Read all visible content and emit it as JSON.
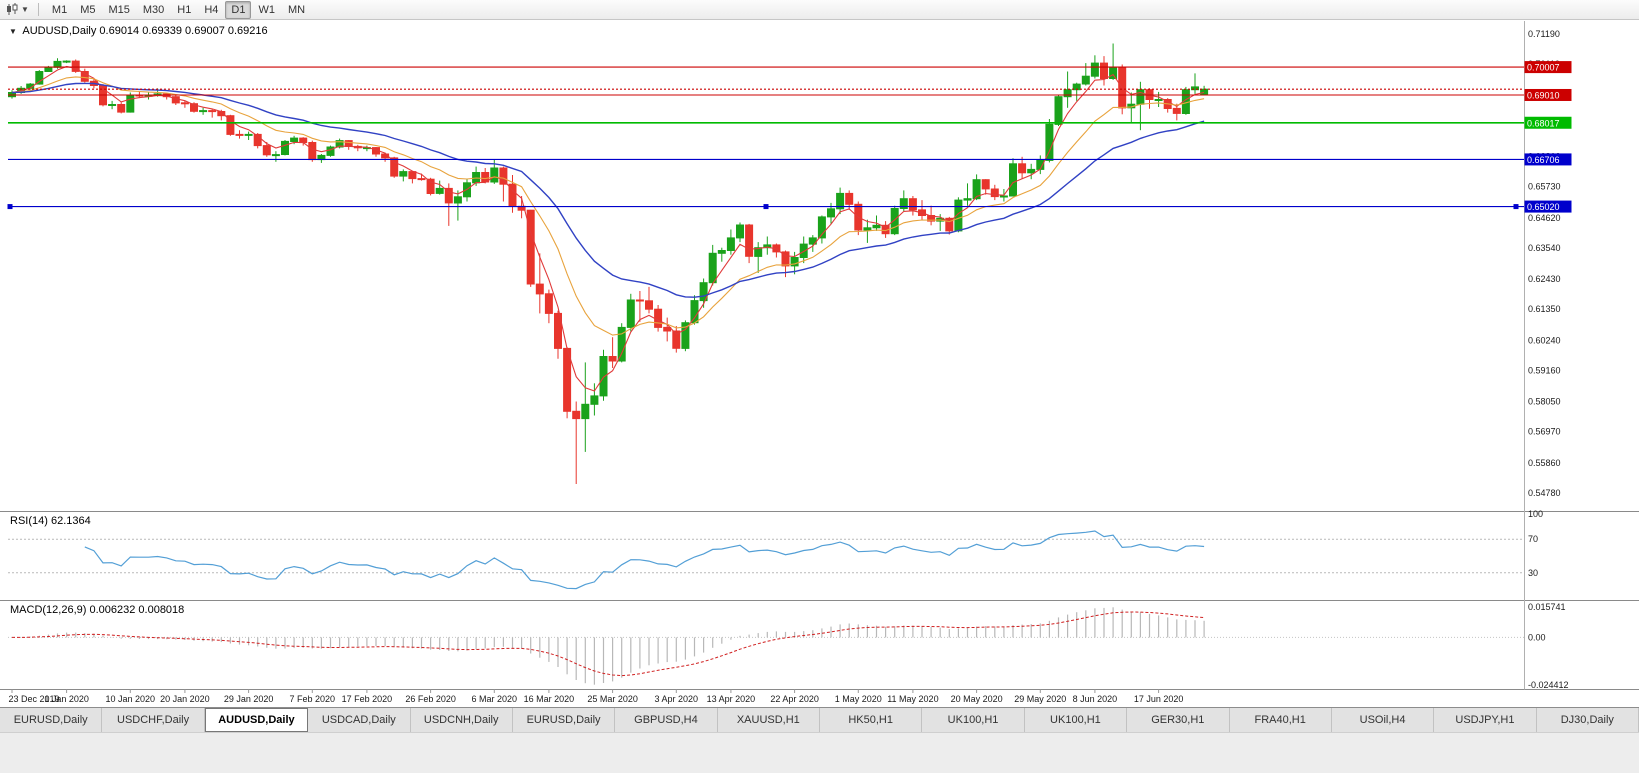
{
  "toolbar": {
    "timeframes": [
      "M1",
      "M5",
      "M15",
      "M30",
      "H1",
      "H4",
      "D1",
      "W1",
      "MN"
    ],
    "active_timeframe": "D1"
  },
  "chart": {
    "title": "AUDUSD,Daily",
    "ohlc": "0.69014 0.69339 0.69007 0.69216"
  },
  "chart_data": {
    "type": "candlestick",
    "symbol": "AUDUSD",
    "period": "Daily",
    "current_bar": {
      "open": 0.69014,
      "high": 0.69339,
      "low": 0.69007,
      "close": 0.69216
    },
    "price_top": 0.71655,
    "price_bottom": 0.54136,
    "y_axis_ticks": [
      0.7119,
      0.7011,
      0.69,
      0.6792,
      0.6681,
      0.6573,
      0.6462,
      0.6354,
      0.6243,
      0.6135,
      0.6024,
      0.5916,
      0.5805,
      0.5697,
      0.5586,
      0.5478
    ],
    "x_axis_labels": [
      {
        "i": 0,
        "text": "23 Dec 2019"
      },
      {
        "i": 6,
        "text": "1 Jan 2020"
      },
      {
        "i": 13,
        "text": "10 Jan 2020"
      },
      {
        "i": 19,
        "text": "20 Jan 2020"
      },
      {
        "i": 26,
        "text": "29 Jan 2020"
      },
      {
        "i": 33,
        "text": "7 Feb 2020"
      },
      {
        "i": 39,
        "text": "17 Feb 2020"
      },
      {
        "i": 46,
        "text": "26 Feb 2020"
      },
      {
        "i": 53,
        "text": "6 Mar 2020"
      },
      {
        "i": 59,
        "text": "16 Mar 2020"
      },
      {
        "i": 66,
        "text": "25 Mar 2020"
      },
      {
        "i": 73,
        "text": "3 Apr 2020"
      },
      {
        "i": 79,
        "text": "13 Apr 2020"
      },
      {
        "i": 86,
        "text": "22 Apr 2020"
      },
      {
        "i": 93,
        "text": "1 May 2020"
      },
      {
        "i": 99,
        "text": "11 May 2020"
      },
      {
        "i": 106,
        "text": "20 May 2020"
      },
      {
        "i": 113,
        "text": "29 May 2020"
      },
      {
        "i": 119,
        "text": "8 Jun 2020"
      },
      {
        "i": 126,
        "text": "17 Jun 2020"
      }
    ],
    "colors": {
      "up": "#1aa21b",
      "down": "#e8352c",
      "ma_fast": "#e03a3a",
      "ma_mid": "#e8a33d",
      "ma_slow": "#3142c4",
      "rsi": "#539fd6",
      "macd_hist": "#b8b8b8",
      "macd_signal": "#d02020",
      "badge_text": "#ffffff"
    },
    "horizontal_lines": [
      {
        "price": 0.70007,
        "label": "0.70007",
        "color": "#cc0000",
        "style": "solid",
        "selected": false
      },
      {
        "price": 0.69216,
        "label": "",
        "color": "#cc0000",
        "style": "dotted",
        "selected": false
      },
      {
        "price": 0.6901,
        "label": "0.69010",
        "color": "#cc0000",
        "style": "solid",
        "selected": false
      },
      {
        "price": 0.68017,
        "label": "0.68017",
        "color": "#00bb00",
        "style": "solid",
        "selected": false
      },
      {
        "price": 0.66706,
        "label": "0.66706",
        "color": "#0000cc",
        "style": "solid",
        "selected": false
      },
      {
        "price": 0.6502,
        "label": "0.65020",
        "color": "#0000cc",
        "style": "solid",
        "selected": true
      }
    ],
    "moving_averages": [
      {
        "period": 4,
        "type": "ema",
        "color_key": "ma_fast"
      },
      {
        "period": 12,
        "type": "ema",
        "color_key": "ma_mid"
      },
      {
        "period": 26,
        "type": "ema",
        "color_key": "ma_slow"
      }
    ],
    "candles": [
      [
        0.6895,
        0.6918,
        0.6888,
        0.691
      ],
      [
        0.691,
        0.6933,
        0.6905,
        0.6925
      ],
      [
        0.6925,
        0.6944,
        0.692,
        0.694
      ],
      [
        0.694,
        0.699,
        0.6938,
        0.6985
      ],
      [
        0.6985,
        0.7005,
        0.6983,
        0.7
      ],
      [
        0.7,
        0.7032,
        0.6995,
        0.7021
      ],
      [
        0.7021,
        0.7025,
        0.7015,
        0.7022
      ],
      [
        0.7022,
        0.7028,
        0.698,
        0.6985
      ],
      [
        0.6985,
        0.6995,
        0.6945,
        0.695
      ],
      [
        0.695,
        0.696,
        0.6925,
        0.6935
      ],
      [
        0.6935,
        0.694,
        0.686,
        0.6866
      ],
      [
        0.6866,
        0.688,
        0.685,
        0.6867
      ],
      [
        0.6867,
        0.6875,
        0.6835,
        0.684
      ],
      [
        0.684,
        0.691,
        0.6838,
        0.6901
      ],
      [
        0.6901,
        0.6912,
        0.689,
        0.69
      ],
      [
        0.69,
        0.6911,
        0.6885,
        0.69
      ],
      [
        0.69,
        0.6925,
        0.6895,
        0.6905
      ],
      [
        0.6905,
        0.691,
        0.6885,
        0.6895
      ],
      [
        0.6895,
        0.69,
        0.6865,
        0.6873
      ],
      [
        0.6873,
        0.688,
        0.6855,
        0.687
      ],
      [
        0.687,
        0.6875,
        0.6838,
        0.6843
      ],
      [
        0.6843,
        0.6855,
        0.683,
        0.6845
      ],
      [
        0.6845,
        0.685,
        0.682,
        0.6842
      ],
      [
        0.6842,
        0.6848,
        0.681,
        0.6827
      ],
      [
        0.6827,
        0.683,
        0.6755,
        0.676
      ],
      [
        0.676,
        0.6775,
        0.6745,
        0.6757
      ],
      [
        0.6757,
        0.677,
        0.674,
        0.676
      ],
      [
        0.676,
        0.6765,
        0.671,
        0.672
      ],
      [
        0.672,
        0.6733,
        0.668,
        0.6687
      ],
      [
        0.6687,
        0.67,
        0.6662,
        0.6688
      ],
      [
        0.6688,
        0.674,
        0.6685,
        0.6735
      ],
      [
        0.6735,
        0.6755,
        0.6725,
        0.6747
      ],
      [
        0.6747,
        0.675,
        0.672,
        0.6731
      ],
      [
        0.6731,
        0.6738,
        0.6662,
        0.667
      ],
      [
        0.667,
        0.669,
        0.6658,
        0.6685
      ],
      [
        0.6685,
        0.672,
        0.668,
        0.6715
      ],
      [
        0.6715,
        0.6745,
        0.671,
        0.6738
      ],
      [
        0.6738,
        0.674,
        0.6705,
        0.6717
      ],
      [
        0.6717,
        0.6723,
        0.67,
        0.6712
      ],
      [
        0.6712,
        0.672,
        0.67,
        0.6713
      ],
      [
        0.6713,
        0.6715,
        0.668,
        0.669
      ],
      [
        0.669,
        0.6695,
        0.6662,
        0.6676
      ],
      [
        0.6676,
        0.668,
        0.6605,
        0.6611
      ],
      [
        0.6611,
        0.6635,
        0.6592,
        0.6627
      ],
      [
        0.6627,
        0.663,
        0.6585,
        0.6602
      ],
      [
        0.6602,
        0.662,
        0.6595,
        0.66
      ],
      [
        0.66,
        0.6605,
        0.6542,
        0.6549
      ],
      [
        0.6549,
        0.6595,
        0.6545,
        0.6567
      ],
      [
        0.6567,
        0.6585,
        0.6433,
        0.6515
      ],
      [
        0.6515,
        0.656,
        0.6452,
        0.6537
      ],
      [
        0.6537,
        0.66,
        0.652,
        0.6587
      ],
      [
        0.6587,
        0.6645,
        0.6576,
        0.6624
      ],
      [
        0.6624,
        0.664,
        0.6585,
        0.659
      ],
      [
        0.659,
        0.667,
        0.6583,
        0.664
      ],
      [
        0.664,
        0.6645,
        0.652,
        0.6582
      ],
      [
        0.6582,
        0.6615,
        0.648,
        0.6503
      ],
      [
        0.6503,
        0.654,
        0.646,
        0.6489
      ],
      [
        0.6489,
        0.649,
        0.6215,
        0.6225
      ],
      [
        0.6225,
        0.6335,
        0.612,
        0.619
      ],
      [
        0.619,
        0.6205,
        0.6085,
        0.612
      ],
      [
        0.612,
        0.613,
        0.5958,
        0.5995
      ],
      [
        0.5995,
        0.6,
        0.5745,
        0.577
      ],
      [
        0.577,
        0.5805,
        0.551,
        0.5744
      ],
      [
        0.5744,
        0.5945,
        0.5625,
        0.5795
      ],
      [
        0.5795,
        0.587,
        0.5755,
        0.5825
      ],
      [
        0.5825,
        0.599,
        0.5808,
        0.5966
      ],
      [
        0.5966,
        0.6035,
        0.5925,
        0.595
      ],
      [
        0.595,
        0.6085,
        0.5945,
        0.607
      ],
      [
        0.607,
        0.619,
        0.6055,
        0.6168
      ],
      [
        0.6168,
        0.62,
        0.609,
        0.6165
      ],
      [
        0.6165,
        0.6215,
        0.612,
        0.6135
      ],
      [
        0.6135,
        0.615,
        0.6055,
        0.607
      ],
      [
        0.607,
        0.6105,
        0.602,
        0.6057
      ],
      [
        0.6057,
        0.6075,
        0.598,
        0.5995
      ],
      [
        0.5995,
        0.6095,
        0.5985,
        0.6087
      ],
      [
        0.6087,
        0.6185,
        0.608,
        0.6166
      ],
      [
        0.6166,
        0.6245,
        0.614,
        0.623
      ],
      [
        0.623,
        0.6365,
        0.622,
        0.6335
      ],
      [
        0.6335,
        0.6355,
        0.6305,
        0.6345
      ],
      [
        0.6345,
        0.642,
        0.633,
        0.639
      ],
      [
        0.639,
        0.6445,
        0.6375,
        0.6436
      ],
      [
        0.6436,
        0.644,
        0.63,
        0.6324
      ],
      [
        0.6324,
        0.6375,
        0.6265,
        0.6355
      ],
      [
        0.6355,
        0.6395,
        0.633,
        0.6365
      ],
      [
        0.6365,
        0.637,
        0.632,
        0.634
      ],
      [
        0.634,
        0.6345,
        0.625,
        0.629
      ],
      [
        0.629,
        0.634,
        0.626,
        0.632
      ],
      [
        0.632,
        0.6395,
        0.63,
        0.6368
      ],
      [
        0.6368,
        0.64,
        0.634,
        0.639
      ],
      [
        0.639,
        0.647,
        0.637,
        0.6465
      ],
      [
        0.6465,
        0.6515,
        0.644,
        0.6494
      ],
      [
        0.6494,
        0.657,
        0.6475,
        0.6549
      ],
      [
        0.6549,
        0.656,
        0.649,
        0.651
      ],
      [
        0.651,
        0.652,
        0.64,
        0.6418
      ],
      [
        0.6418,
        0.6455,
        0.6372,
        0.6426
      ],
      [
        0.6426,
        0.647,
        0.6415,
        0.6435
      ],
      [
        0.6435,
        0.645,
        0.639,
        0.6405
      ],
      [
        0.6405,
        0.6505,
        0.64,
        0.6495
      ],
      [
        0.6495,
        0.656,
        0.6485,
        0.653
      ],
      [
        0.653,
        0.654,
        0.647,
        0.649
      ],
      [
        0.649,
        0.6525,
        0.6455,
        0.647
      ],
      [
        0.647,
        0.6505,
        0.6435,
        0.645
      ],
      [
        0.645,
        0.6475,
        0.6415,
        0.646
      ],
      [
        0.646,
        0.6465,
        0.6402,
        0.6415
      ],
      [
        0.6415,
        0.6535,
        0.641,
        0.6525
      ],
      [
        0.6525,
        0.6585,
        0.6505,
        0.653
      ],
      [
        0.653,
        0.6617,
        0.6525,
        0.6598
      ],
      [
        0.6598,
        0.66,
        0.6545,
        0.6565
      ],
      [
        0.6565,
        0.658,
        0.6525,
        0.6538
      ],
      [
        0.6538,
        0.6565,
        0.652,
        0.654
      ],
      [
        0.654,
        0.6675,
        0.6538,
        0.6655
      ],
      [
        0.6655,
        0.668,
        0.6602,
        0.6623
      ],
      [
        0.6623,
        0.6655,
        0.66,
        0.6635
      ],
      [
        0.6635,
        0.6685,
        0.6618,
        0.6667
      ],
      [
        0.6667,
        0.6815,
        0.666,
        0.6796
      ],
      [
        0.6796,
        0.69,
        0.679,
        0.6895
      ],
      [
        0.6895,
        0.6985,
        0.6855,
        0.692
      ],
      [
        0.692,
        0.6945,
        0.688,
        0.694
      ],
      [
        0.694,
        0.7015,
        0.6935,
        0.6968
      ],
      [
        0.6968,
        0.7043,
        0.696,
        0.7015
      ],
      [
        0.7015,
        0.704,
        0.6935,
        0.696
      ],
      [
        0.696,
        0.7085,
        0.6955,
        0.7
      ],
      [
        0.7,
        0.701,
        0.6832,
        0.6855
      ],
      [
        0.6855,
        0.691,
        0.68,
        0.6868
      ],
      [
        0.6868,
        0.6948,
        0.6775,
        0.692
      ],
      [
        0.692,
        0.6925,
        0.6852,
        0.6885
      ],
      [
        0.6885,
        0.6912,
        0.6858,
        0.6885
      ],
      [
        0.6885,
        0.689,
        0.6838,
        0.6853
      ],
      [
        0.6853,
        0.687,
        0.681,
        0.6835
      ],
      [
        0.6835,
        0.693,
        0.683,
        0.692
      ],
      [
        0.692,
        0.6978,
        0.6905,
        0.693
      ],
      [
        0.69014,
        0.69339,
        0.69007,
        0.69216
      ]
    ],
    "rsi": {
      "label": "RSI(14) 62.1364",
      "period": 14,
      "value": 62.1364,
      "levels": [
        100,
        70,
        30
      ]
    },
    "macd": {
      "label": "MACD(12,26,9) 0.006232 0.008018",
      "values": [
        0.006232,
        0.008018
      ],
      "axis_labels": [
        "0.015741",
        "0.00",
        "-0.024412"
      ]
    }
  },
  "tabs": {
    "items": [
      "EURUSD,Daily",
      "USDCHF,Daily",
      "AUDUSD,Daily",
      "USDCAD,Daily",
      "USDCNH,Daily",
      "EURUSD,Daily",
      "GBPUSD,H4",
      "XAUUSD,H1",
      "HK50,H1",
      "UK100,H1",
      "UK100,H1",
      "GER30,H1",
      "FRA40,H1",
      "USOil,H4",
      "USDJPY,H1",
      "DJ30,Daily"
    ],
    "active_index": 2
  }
}
